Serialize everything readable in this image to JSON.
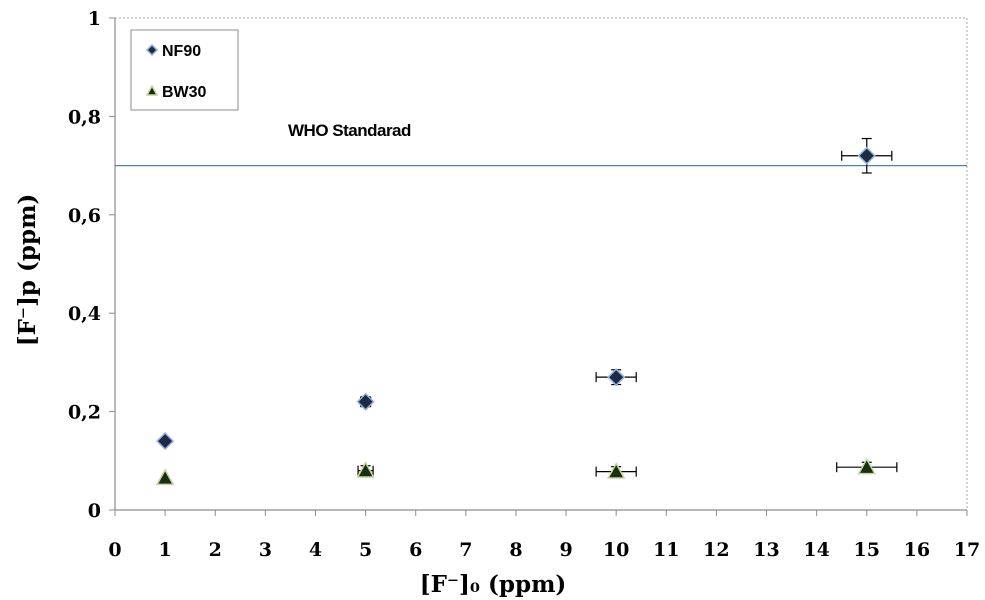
{
  "chart_data": {
    "type": "scatter",
    "xlabel": "[F⁻]₀ (ppm)",
    "ylabel": "[F⁻]p (ppm)",
    "xlim": [
      0,
      17
    ],
    "ylim": [
      0,
      1
    ],
    "x_ticks": [
      "0",
      "1",
      "2",
      "3",
      "4",
      "5",
      "6",
      "7",
      "8",
      "9",
      "10",
      "11",
      "12",
      "13",
      "14",
      "15",
      "16",
      "17"
    ],
    "y_ticks": [
      "0",
      "0,2",
      "0,4",
      "0,6",
      "0,8",
      "1"
    ],
    "legend_position": "top-left",
    "grid": false,
    "reference_line": {
      "label": "WHO Standarad",
      "y": 0.7,
      "color": "#4f81bd"
    },
    "series": [
      {
        "name": "NF90",
        "marker": "diamond",
        "color": "#1f2a44",
        "outline": "#8db3e2",
        "points": [
          {
            "x": 1,
            "y": 0.14,
            "xerr": 0,
            "yerr": 0
          },
          {
            "x": 5,
            "y": 0.22,
            "xerr": 0.1,
            "yerr": 0.01
          },
          {
            "x": 10,
            "y": 0.27,
            "xerr": 0.4,
            "yerr": 0.015
          },
          {
            "x": 15,
            "y": 0.72,
            "xerr": 0.5,
            "yerr": 0.035
          }
        ]
      },
      {
        "name": "BW30",
        "marker": "triangle",
        "color": "#1a2e14",
        "outline": "#c3d69b",
        "points": [
          {
            "x": 1,
            "y": 0.065,
            "xerr": 0,
            "yerr": 0
          },
          {
            "x": 5,
            "y": 0.08,
            "xerr": 0.15,
            "yerr": 0.01
          },
          {
            "x": 10,
            "y": 0.078,
            "xerr": 0.4,
            "yerr": 0.01
          },
          {
            "x": 15,
            "y": 0.087,
            "xerr": 0.6,
            "yerr": 0.01
          }
        ]
      }
    ]
  }
}
